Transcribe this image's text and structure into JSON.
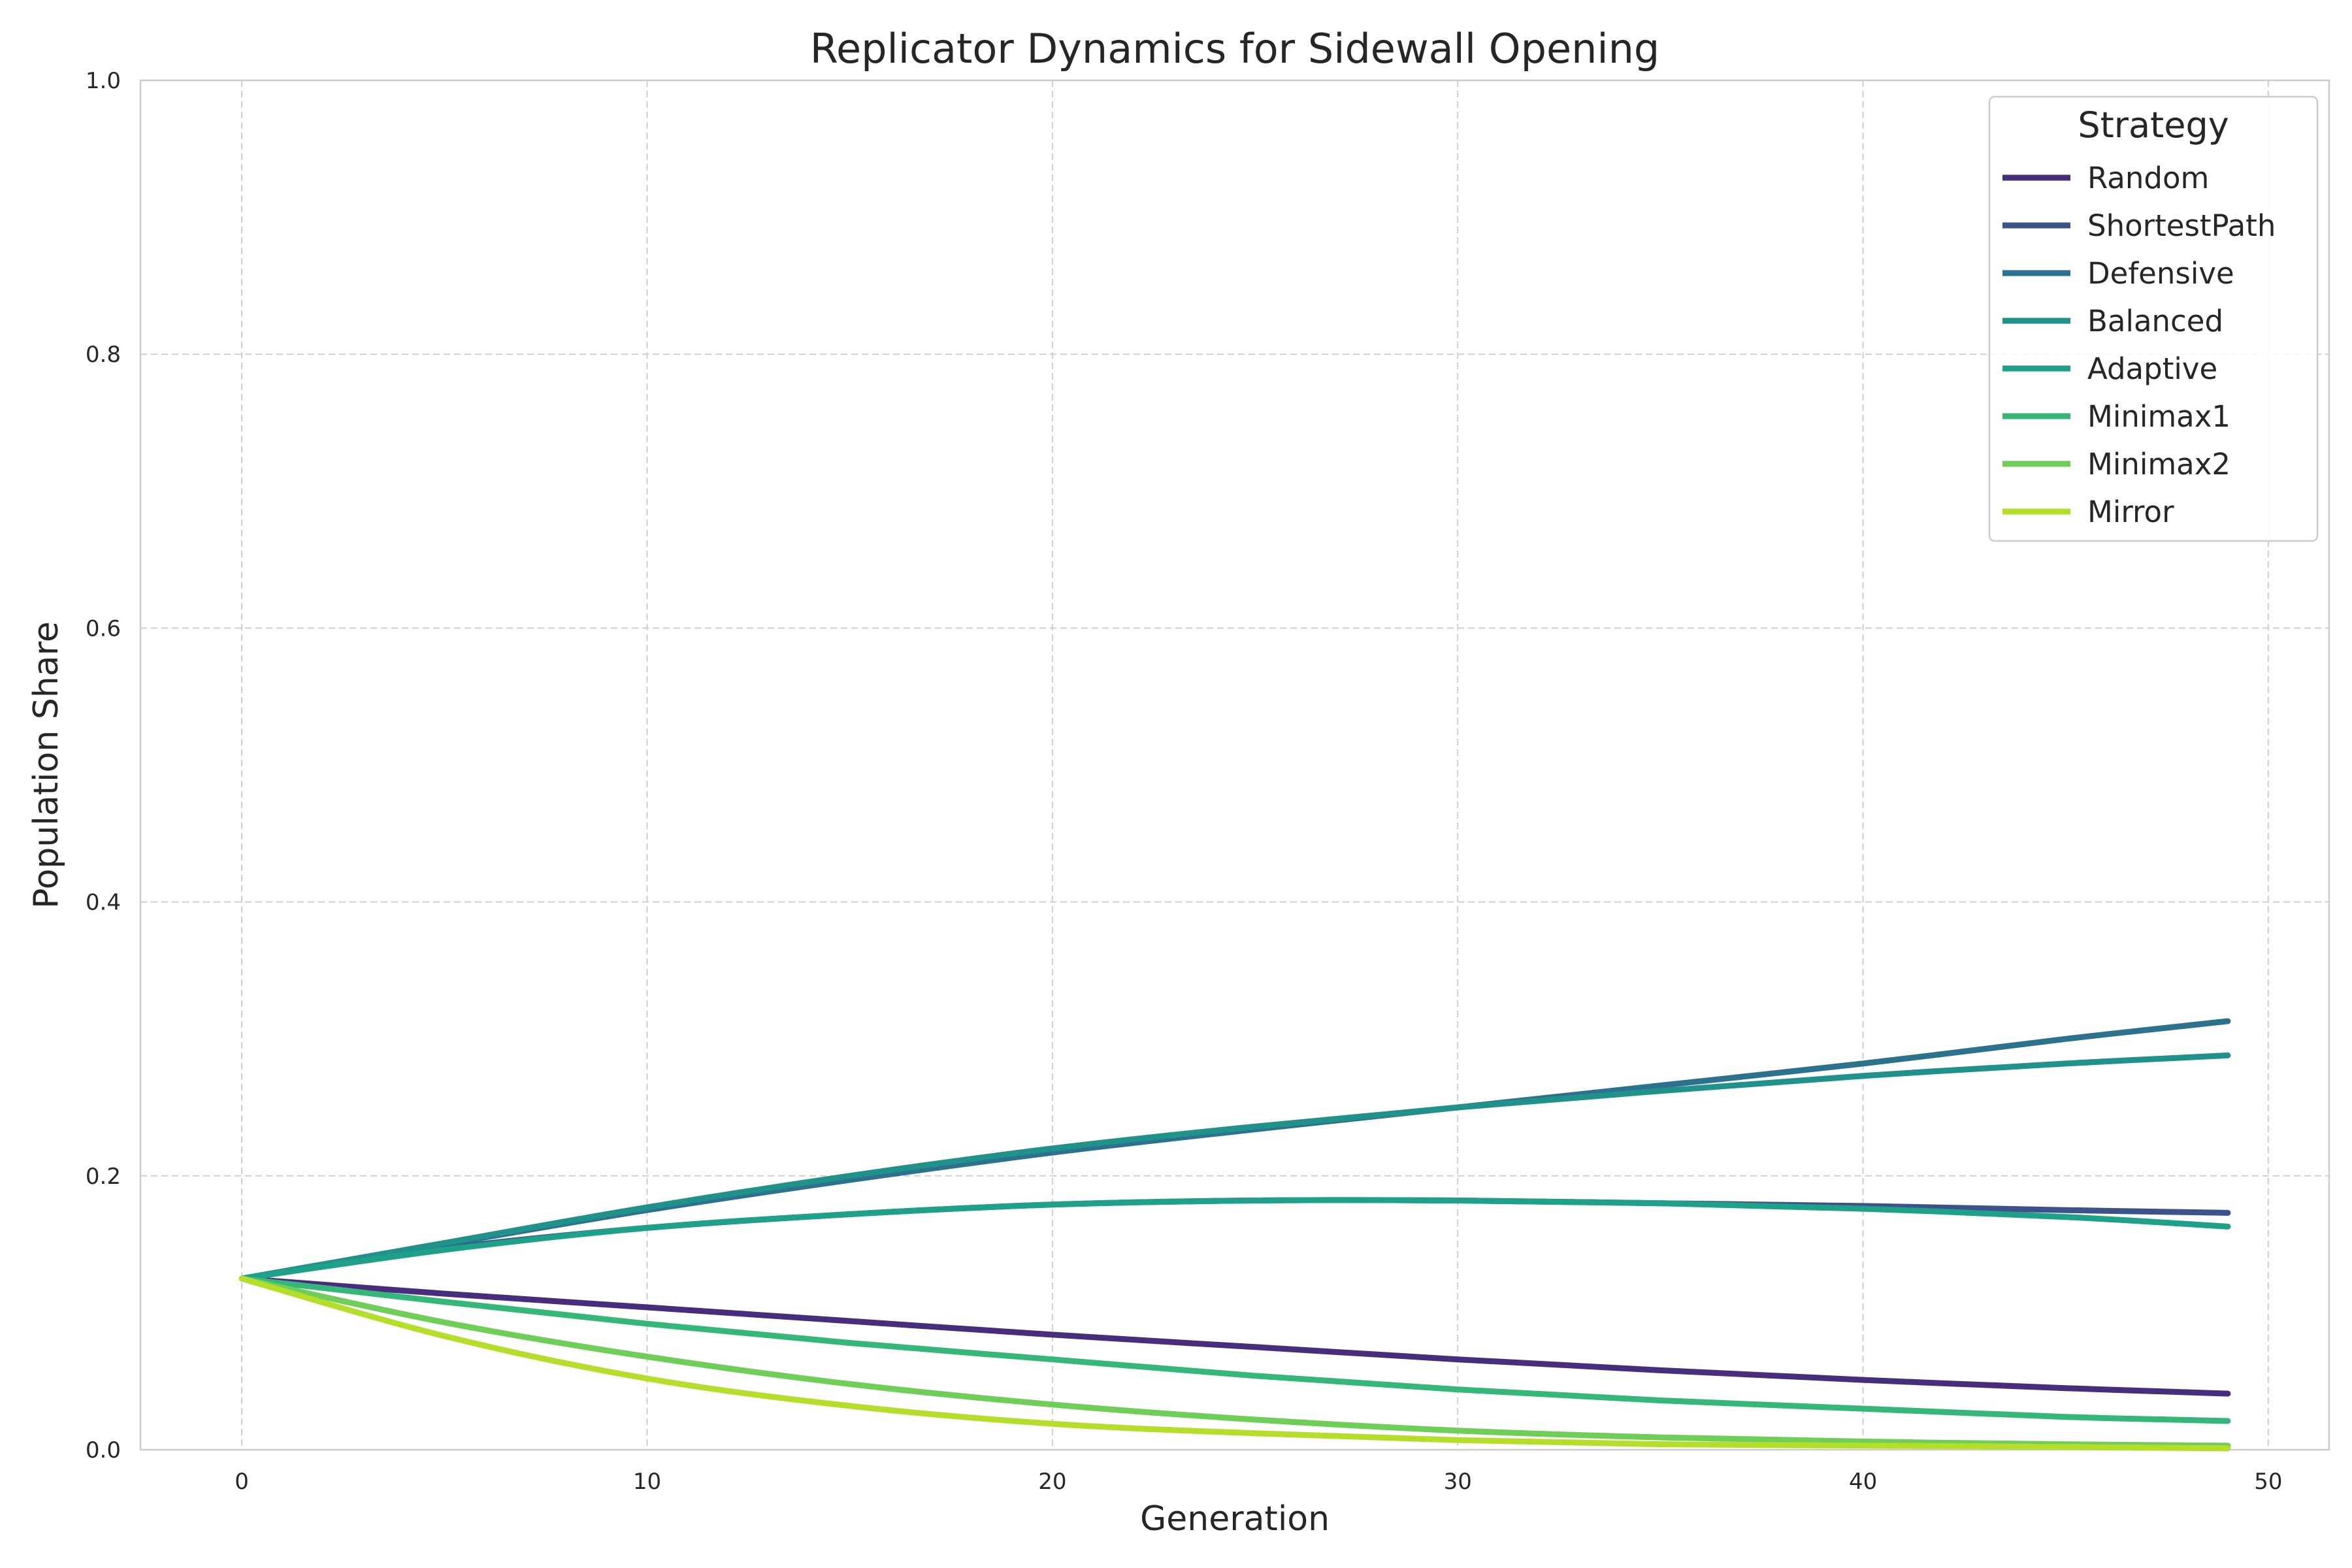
{
  "chart_data": {
    "type": "line",
    "title": "Replicator Dynamics for Sidewall Opening",
    "xlabel": "Generation",
    "ylabel": "Population Share",
    "xlim": [
      -2.5,
      51.5
    ],
    "ylim": [
      0.0,
      1.0
    ],
    "xticks": [
      0,
      10,
      20,
      30,
      40,
      50
    ],
    "yticks": [
      0.0,
      0.2,
      0.4,
      0.6,
      0.8,
      1.0
    ],
    "grid": true,
    "legend": {
      "title": "Strategy",
      "position": "top-right"
    },
    "x": [
      0,
      5,
      10,
      15,
      20,
      25,
      30,
      35,
      40,
      45,
      49
    ],
    "series": [
      {
        "name": "Random",
        "color": "#472d7b",
        "values": [
          0.125,
          0.114,
          0.104,
          0.094,
          0.084,
          0.075,
          0.066,
          0.058,
          0.051,
          0.045,
          0.041
        ]
      },
      {
        "name": "ShortestPath",
        "color": "#3b528b",
        "values": [
          0.125,
          0.147,
          0.162,
          0.172,
          0.179,
          0.182,
          0.182,
          0.18,
          0.178,
          0.175,
          0.173
        ]
      },
      {
        "name": "Defensive",
        "color": "#2c728e",
        "values": [
          0.125,
          0.15,
          0.175,
          0.197,
          0.217,
          0.234,
          0.25,
          0.266,
          0.282,
          0.3,
          0.313
        ]
      },
      {
        "name": "Balanced",
        "color": "#21918c",
        "values": [
          0.125,
          0.151,
          0.177,
          0.2,
          0.22,
          0.236,
          0.25,
          0.262,
          0.273,
          0.282,
          0.288
        ]
      },
      {
        "name": "Adaptive",
        "color": "#1fa088",
        "values": [
          0.125,
          0.146,
          0.162,
          0.172,
          0.179,
          0.182,
          0.182,
          0.18,
          0.176,
          0.17,
          0.163
        ]
      },
      {
        "name": "Minimax1",
        "color": "#35b779",
        "values": [
          0.125,
          0.108,
          0.092,
          0.078,
          0.066,
          0.054,
          0.044,
          0.036,
          0.03,
          0.024,
          0.021
        ]
      },
      {
        "name": "Minimax2",
        "color": "#6ece58",
        "values": [
          0.125,
          0.093,
          0.068,
          0.048,
          0.033,
          0.022,
          0.014,
          0.009,
          0.006,
          0.004,
          0.003
        ]
      },
      {
        "name": "Mirror",
        "color": "#b5de2b",
        "values": [
          0.125,
          0.083,
          0.052,
          0.032,
          0.019,
          0.012,
          0.007,
          0.004,
          0.003,
          0.002,
          0.001
        ]
      }
    ]
  }
}
